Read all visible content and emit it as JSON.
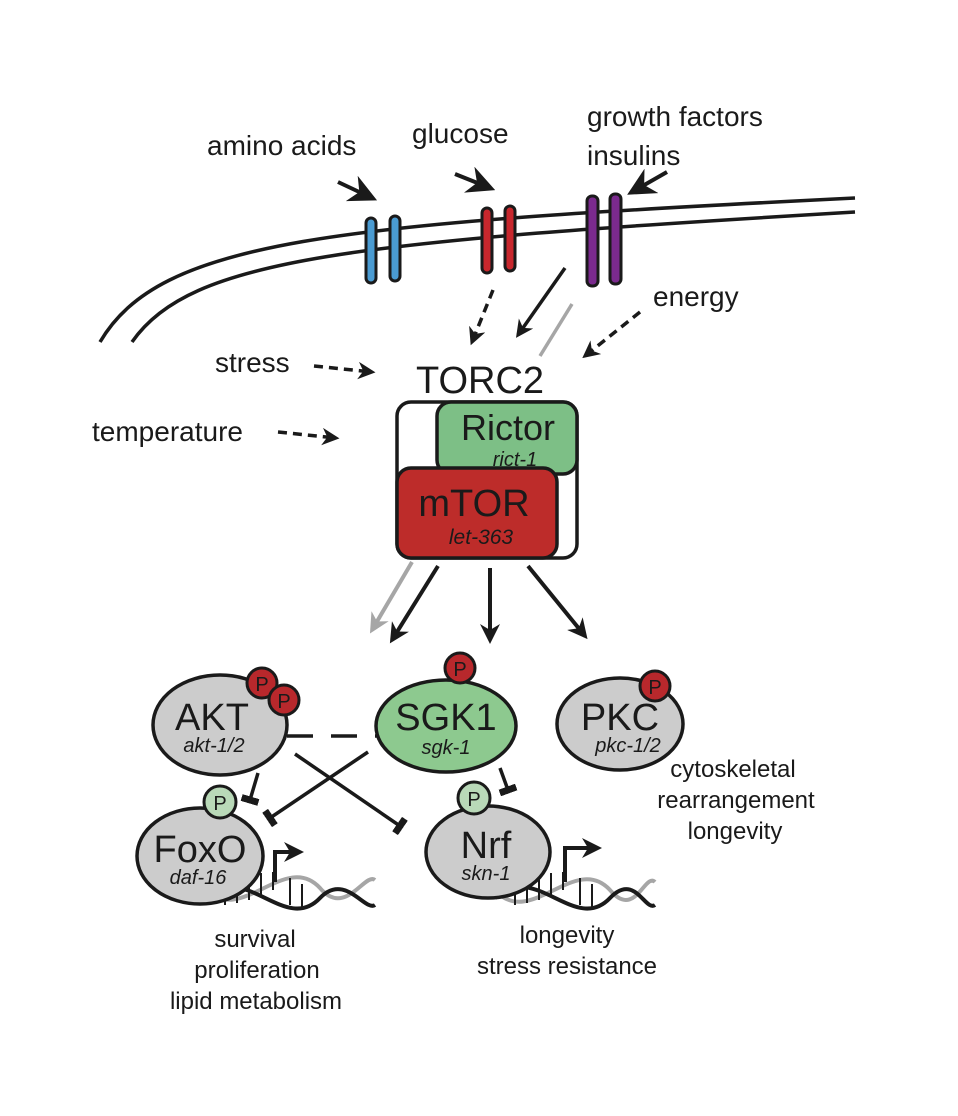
{
  "inputs": {
    "amino_acids": "amino acids",
    "glucose": "glucose",
    "growth_factors": "growth factors",
    "insulins": "insulins",
    "energy": "energy",
    "stress": "stress",
    "temperature": "temperature"
  },
  "complex": {
    "title": "TORC2",
    "rictor": {
      "name": "Rictor",
      "gene": "rict-1"
    },
    "mtor": {
      "name": "mTOR",
      "gene": "let-363"
    }
  },
  "kinases": {
    "akt": {
      "name": "AKT",
      "gene": "akt-1/2"
    },
    "sgk1": {
      "name": "SGK1",
      "gene": "sgk-1"
    },
    "pkc": {
      "name": "PKC",
      "gene": "pkc-1/2"
    }
  },
  "targets": {
    "foxo": {
      "name": "FoxO",
      "gene": "daf-16"
    },
    "nrf": {
      "name": "Nrf",
      "gene": "skn-1"
    }
  },
  "phospho_label": "P",
  "outcomes": {
    "pkc": [
      "cytoskeletal",
      "rearrangement",
      "longevity"
    ],
    "foxo": [
      "survival",
      "proliferation",
      "lipid metabolism"
    ],
    "nrf": [
      "longevity",
      "stress resistance"
    ]
  },
  "colors": {
    "receptor_aa": "#4a9bd2",
    "receptor_glucose": "#c8272d",
    "receptor_gf": "#7b2a8e",
    "rictor": "#7dbf86",
    "mtor": "#bd2c2a",
    "sgk1": "#8dc98f",
    "node_gray": "#cccccc",
    "phospho_red": "#b8282c",
    "phospho_green": "#b9d9b8",
    "gray_arrow": "#a6a6a6"
  }
}
